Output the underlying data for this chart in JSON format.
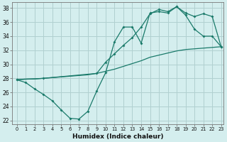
{
  "line1_x": [
    0,
    1,
    2,
    3,
    4,
    5,
    6,
    7,
    8,
    9,
    10,
    11,
    12,
    13,
    14,
    15,
    16,
    17,
    18,
    19,
    20,
    21,
    22,
    23
  ],
  "line1_y": [
    27.8,
    27.4,
    26.5,
    25.7,
    24.8,
    23.5,
    22.3,
    22.2,
    23.3,
    26.2,
    28.8,
    33.2,
    35.3,
    35.3,
    33.0,
    37.3,
    37.5,
    37.3,
    38.2,
    37.0,
    35.0,
    34.0,
    34.0,
    32.5
  ],
  "line2_x": [
    0,
    3,
    9,
    10,
    11,
    12,
    13,
    14,
    15,
    16,
    17,
    18,
    19,
    20,
    21,
    22,
    23
  ],
  "line2_y": [
    27.8,
    28.0,
    28.7,
    30.3,
    31.5,
    32.7,
    33.8,
    35.3,
    37.2,
    37.8,
    37.5,
    38.2,
    37.3,
    36.8,
    37.2,
    36.8,
    32.5
  ],
  "line3_x": [
    0,
    1,
    2,
    3,
    4,
    5,
    6,
    7,
    8,
    9,
    10,
    11,
    12,
    13,
    14,
    15,
    16,
    17,
    18,
    19,
    20,
    21,
    22,
    23
  ],
  "line3_y": [
    27.8,
    27.9,
    27.9,
    28.0,
    28.1,
    28.2,
    28.3,
    28.4,
    28.5,
    28.7,
    29.0,
    29.3,
    29.7,
    30.1,
    30.5,
    31.0,
    31.3,
    31.6,
    31.9,
    32.1,
    32.2,
    32.3,
    32.4,
    32.5
  ],
  "color": "#1a7a6a",
  "bg_color": "#d4eeee",
  "grid_color": "#b0d0d0",
  "xlabel": "Humidex (Indice chaleur)",
  "xlim": [
    -0.5,
    23.3
  ],
  "ylim": [
    21.5,
    38.8
  ],
  "yticks": [
    22,
    24,
    26,
    28,
    30,
    32,
    34,
    36,
    38
  ],
  "xticks": [
    0,
    1,
    2,
    3,
    4,
    5,
    6,
    7,
    8,
    9,
    10,
    11,
    12,
    13,
    14,
    15,
    16,
    17,
    18,
    19,
    20,
    21,
    22,
    23
  ]
}
